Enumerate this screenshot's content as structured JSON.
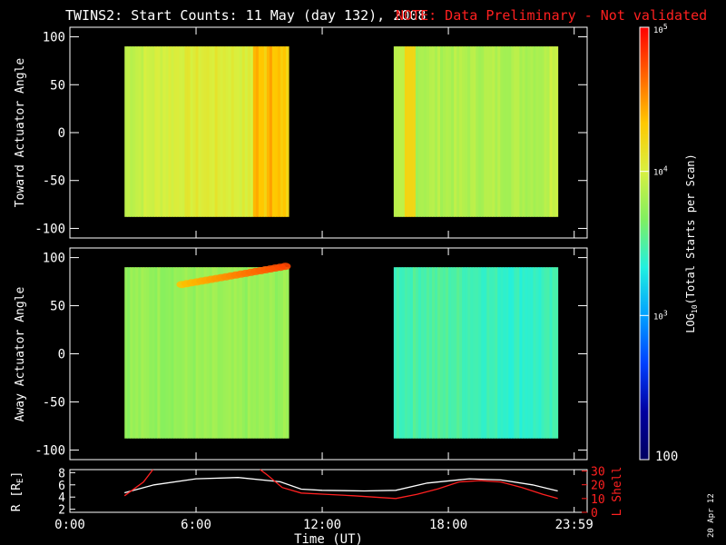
{
  "chart_data": [
    {
      "type": "heatmap",
      "title_main": "TWINS2: Start Counts: 11 May (day 132), 2008",
      "title_note": "NOTE: Data Preliminary - Not validated",
      "ylabel": "Toward Actuator Angle",
      "ylim": [
        -110,
        110
      ],
      "yticks": [
        100,
        50,
        0,
        -50,
        -100
      ],
      "data_blocks": [
        {
          "x_start": 2.6,
          "x_end": 10.4,
          "y_range": [
            -88,
            90
          ],
          "base_level": 3.9
        },
        {
          "x_start": 15.4,
          "x_end": 23.2,
          "y_range": [
            -88,
            90
          ],
          "base_level": 3.85
        }
      ]
    },
    {
      "type": "heatmap",
      "ylabel": "Away Actuator Angle",
      "ylim": [
        -110,
        110
      ],
      "yticks": [
        100,
        50,
        0,
        -50,
        -100
      ],
      "data_blocks": [
        {
          "x_start": 2.6,
          "x_end": 10.4,
          "y_range": [
            -88,
            90
          ],
          "base_level": 3.75
        },
        {
          "x_start": 15.4,
          "x_end": 23.2,
          "y_range": [
            -88,
            90
          ],
          "base_level": 3.45
        }
      ]
    },
    {
      "type": "line",
      "ylabel_left": "R [R",
      "ylabel_left_sub": "E",
      "ylabel_left_close": "]",
      "ylabel_right": "L Shell",
      "yleft_ticks": [
        "2",
        "4",
        "6",
        "8"
      ],
      "yright_ticks": [
        "0",
        "10",
        "20",
        "30"
      ],
      "ylim_left": [
        1.5,
        8.5
      ],
      "ylim_right": [
        0,
        31
      ],
      "series": [
        {
          "color": "#ffffff",
          "x": [
            2.6,
            4,
            6,
            8,
            10,
            11,
            12,
            14,
            15.5,
            17,
            19,
            20.5,
            22,
            23.2
          ],
          "y": [
            4.7,
            6,
            7,
            7.2,
            6.5,
            5.3,
            5.1,
            5,
            5.1,
            6.3,
            7,
            6.8,
            6,
            5
          ]
        },
        {
          "color": "#ff2020",
          "x": [
            2.6,
            3.5,
            3.95,
            null,
            9.05,
            9.4,
            10.1,
            11,
            12,
            13.5,
            15.5,
            16.5,
            17.5,
            18.5,
            19.5,
            20.5,
            21.5,
            22.5,
            23.2
          ],
          "y": [
            12,
            22,
            31,
            null,
            31,
            27,
            18,
            14,
            13.2,
            12,
            10,
            13,
            17,
            22,
            23,
            22,
            18,
            13,
            10
          ]
        }
      ]
    }
  ],
  "x_axis": {
    "label": "Time (UT)",
    "ticks": [
      {
        "t": 0,
        "label": "0:00"
      },
      {
        "t": 6,
        "label": "6:00"
      },
      {
        "t": 12,
        "label": "12:00"
      },
      {
        "t": 18,
        "label": "18:00"
      },
      {
        "t": 23.983,
        "label": "23:59"
      }
    ],
    "xlim": [
      0,
      24.6
    ]
  },
  "colorbar": {
    "label_pre": "LOG",
    "label_sub": "10",
    "label_post": "(Total Starts per Scan)",
    "ticks": [
      {
        "v": 5,
        "base": "10",
        "exp": "5"
      },
      {
        "v": 4,
        "base": "10",
        "exp": "4"
      },
      {
        "v": 3,
        "base": "10",
        "exp": "3"
      }
    ],
    "bottom_label": "100",
    "range": [
      2,
      5
    ],
    "stops": [
      "#ff0000",
      "#ff6400",
      "#ffc800",
      "#d8f040",
      "#80f060",
      "#20f0e0",
      "#00a0ff",
      "#0040ff",
      "#0000a0",
      "#000060"
    ]
  },
  "stamp": "20 Apr 12"
}
